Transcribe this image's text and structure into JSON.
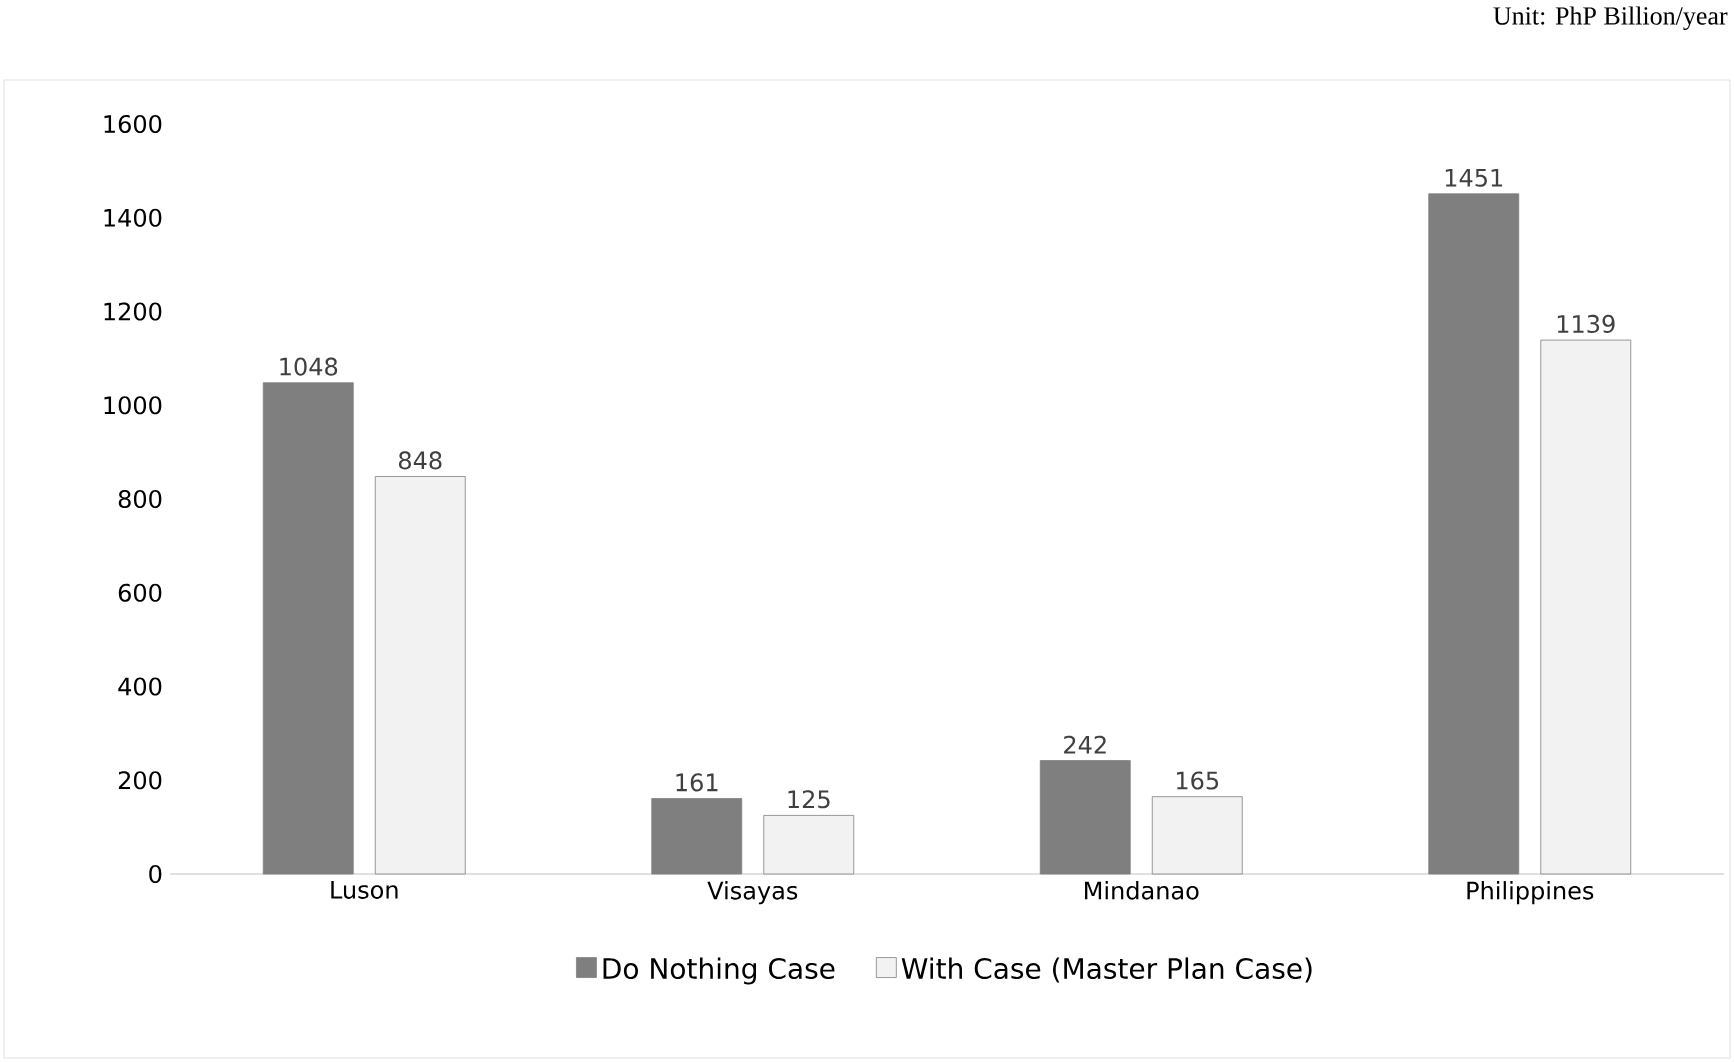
{
  "chart_data": {
    "type": "bar",
    "annotations": [
      "Unit: PhP Billion/year"
    ],
    "categories": [
      "Luson",
      "Visayas",
      "Mindanao",
      "Philippines"
    ],
    "series": [
      {
        "name": "Do Nothing Case",
        "color": "#7f7f7f",
        "values": [
          1048,
          161,
          242,
          1451
        ]
      },
      {
        "name": "With Case (Master Plan Case)",
        "color": "#f2f2f2",
        "values": [
          848,
          125,
          165,
          1139
        ]
      }
    ],
    "ylim": [
      0,
      1600
    ],
    "yticks": [
      0,
      200,
      400,
      600,
      800,
      1000,
      1200,
      1400,
      1600
    ],
    "data_labels": true,
    "legend": "bottom"
  }
}
